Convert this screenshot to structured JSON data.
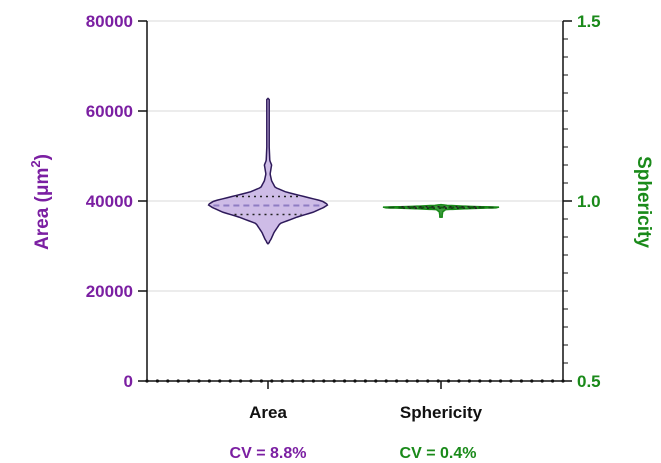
{
  "chart_data": {
    "type": "violin",
    "title": "",
    "categories": [
      "Area",
      "Sphericity"
    ],
    "left_axis": {
      "label_main": "Area (μm",
      "label_sup": "2",
      "label_close": ")",
      "range": [
        0,
        80000
      ],
      "ticks": [
        0,
        20000,
        40000,
        60000,
        80000
      ],
      "tick_labels": [
        "0",
        "20000",
        "40000",
        "60000",
        "80000"
      ],
      "color": "#7b1fa2"
    },
    "right_axis": {
      "label": "Sphericity",
      "range": [
        0.5,
        1.5
      ],
      "ticks": [
        0.5,
        1.0,
        1.5
      ],
      "tick_labels": [
        "0.5",
        "1.0",
        "1.5"
      ],
      "color": "#1a8a1a"
    },
    "grid": true,
    "series": [
      {
        "name": "Area",
        "axis": "left",
        "fill": "#cbb8e6",
        "stroke": "#2e1a5a",
        "min": 30500,
        "max": 62800,
        "median": 39000,
        "q1": 37000,
        "q3": 41000,
        "profile": [
          [
            30500,
            0.0
          ],
          [
            31500,
            0.05
          ],
          [
            33000,
            0.1
          ],
          [
            35000,
            0.2
          ],
          [
            36500,
            0.5
          ],
          [
            37500,
            0.75
          ],
          [
            38500,
            0.92
          ],
          [
            39200,
            1.0
          ],
          [
            40000,
            0.9
          ],
          [
            41000,
            0.6
          ],
          [
            42000,
            0.3
          ],
          [
            43000,
            0.12
          ],
          [
            44500,
            0.06
          ],
          [
            46000,
            0.035
          ],
          [
            47200,
            0.05
          ],
          [
            48000,
            0.06
          ],
          [
            49000,
            0.03
          ],
          [
            52000,
            0.02
          ],
          [
            56000,
            0.018
          ],
          [
            60000,
            0.015
          ],
          [
            62800,
            0.0
          ]
        ]
      },
      {
        "name": "Sphericity",
        "axis": "right",
        "fill": "#1a8a1a",
        "stroke": "#1a8a1a",
        "min": 0.955,
        "max": 0.99,
        "median": 0.982,
        "q1": 0.98,
        "q3": 0.984,
        "profile": [
          [
            0.955,
            0.0
          ],
          [
            0.96,
            0.02
          ],
          [
            0.97,
            0.03
          ],
          [
            0.976,
            0.08
          ],
          [
            0.979,
            0.5
          ],
          [
            0.981,
            0.95
          ],
          [
            0.983,
            1.0
          ],
          [
            0.985,
            0.5
          ],
          [
            0.988,
            0.1
          ],
          [
            0.99,
            0.0
          ]
        ]
      }
    ],
    "annotations": [
      "CV = 8.8%",
      "CV = 0.4%"
    ]
  }
}
